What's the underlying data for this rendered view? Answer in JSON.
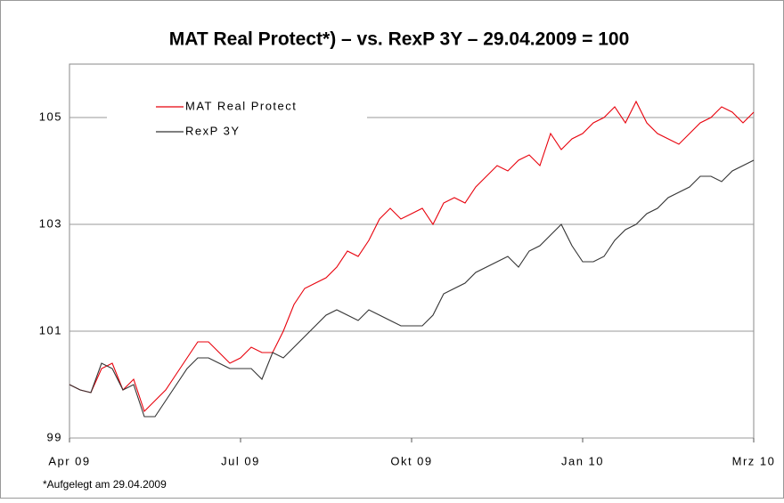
{
  "chart_data": {
    "type": "line",
    "title": "MAT Real Protect*) – vs. RexP 3Y – 29.04.2009 = 100",
    "footnote": "*Aufgelegt am 29.04.2009",
    "categories": [
      "Apr 09",
      null,
      null,
      null,
      null,
      null,
      null,
      null,
      null,
      null,
      null,
      null,
      null,
      null,
      null,
      null,
      "Jul 09",
      null,
      null,
      null,
      null,
      null,
      null,
      null,
      null,
      null,
      null,
      null,
      null,
      null,
      null,
      null,
      "Okt 09",
      null,
      null,
      null,
      null,
      null,
      null,
      null,
      null,
      null,
      null,
      null,
      null,
      null,
      null,
      null,
      "Jan 10",
      null,
      null,
      null,
      null,
      null,
      null,
      null,
      null,
      null,
      null,
      null,
      null,
      null,
      null,
      null,
      "Mrz 10"
    ],
    "series": [
      {
        "name": "MAT Real Protect",
        "color": "#e8000b",
        "values": [
          100.0,
          99.9,
          99.85,
          100.3,
          100.4,
          99.9,
          100.1,
          99.5,
          99.7,
          99.9,
          100.2,
          100.5,
          100.8,
          100.8,
          100.6,
          100.4,
          100.5,
          100.7,
          100.6,
          100.6,
          101.0,
          101.5,
          101.8,
          101.9,
          102.0,
          102.2,
          102.5,
          102.4,
          102.7,
          103.1,
          103.3,
          103.1,
          103.2,
          103.3,
          103.0,
          103.4,
          103.5,
          103.4,
          103.7,
          103.9,
          104.1,
          104.0,
          104.2,
          104.3,
          104.1,
          104.7,
          104.4,
          104.6,
          104.7,
          104.9,
          105.0,
          105.2,
          104.9,
          105.3,
          104.9,
          104.7,
          104.6,
          104.5,
          104.7,
          104.9,
          105.0,
          105.2,
          105.1,
          104.9,
          105.1
        ]
      },
      {
        "name": "RexP 3Y",
        "color": "#333333",
        "values": [
          100.0,
          99.9,
          99.85,
          100.4,
          100.3,
          99.9,
          100.0,
          99.4,
          99.4,
          99.7,
          100.0,
          100.3,
          100.5,
          100.5,
          100.4,
          100.3,
          100.3,
          100.3,
          100.1,
          100.6,
          100.5,
          100.7,
          100.9,
          101.1,
          101.3,
          101.4,
          101.3,
          101.2,
          101.4,
          101.3,
          101.2,
          101.1,
          101.1,
          101.1,
          101.3,
          101.7,
          101.8,
          101.9,
          102.1,
          102.2,
          102.3,
          102.4,
          102.2,
          102.5,
          102.6,
          102.8,
          103.0,
          102.6,
          102.3,
          102.3,
          102.4,
          102.7,
          102.9,
          103.0,
          103.2,
          103.3,
          103.5,
          103.6,
          103.7,
          103.9,
          103.9,
          103.8,
          104.0,
          104.1,
          104.2
        ]
      }
    ],
    "ylim": [
      99,
      106
    ],
    "yticks": [
      99,
      101,
      103,
      105
    ],
    "grid": true,
    "legend": "upper left"
  }
}
